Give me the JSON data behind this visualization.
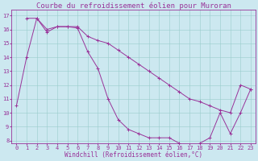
{
  "title": "Courbe du refroidissement éolien pour Muroran",
  "xlabel": "Windchill (Refroidissement éolien,°C)",
  "bg_color": "#cce8f0",
  "grid_color": "#99cccc",
  "line_color": "#993399",
  "line1_x": [
    0,
    1,
    2,
    3,
    4,
    5,
    6,
    7,
    8,
    9,
    10,
    11,
    12,
    13,
    14,
    15,
    16,
    17,
    18,
    19,
    20,
    21,
    22,
    23
  ],
  "line1_y": [
    10.5,
    14.0,
    16.8,
    16.0,
    16.2,
    16.2,
    16.1,
    14.4,
    13.2,
    11.0,
    9.5,
    8.8,
    8.5,
    8.2,
    8.2,
    8.2,
    7.8,
    7.5,
    7.8,
    8.2,
    10.0,
    8.5,
    10.0,
    11.7
  ],
  "line2_x": [
    1,
    2,
    3,
    4,
    5,
    6,
    7,
    8,
    9,
    10,
    11,
    12,
    13,
    14,
    15,
    16,
    17,
    18,
    19,
    20,
    21,
    22,
    23
  ],
  "line2_y": [
    16.8,
    16.8,
    15.8,
    16.2,
    16.2,
    16.2,
    15.5,
    15.2,
    15.0,
    14.5,
    14.0,
    13.5,
    13.0,
    12.5,
    12.0,
    11.5,
    11.0,
    10.8,
    10.5,
    10.2,
    10.0,
    12.0,
    11.7
  ],
  "xlim": [
    -0.5,
    23.5
  ],
  "ylim": [
    7.8,
    17.4
  ],
  "xticks": [
    0,
    1,
    2,
    3,
    4,
    5,
    6,
    7,
    8,
    9,
    10,
    11,
    12,
    13,
    14,
    15,
    16,
    17,
    18,
    19,
    20,
    21,
    22,
    23
  ],
  "yticks": [
    8,
    9,
    10,
    11,
    12,
    13,
    14,
    15,
    16,
    17
  ],
  "title_fontsize": 6.5,
  "tick_fontsize": 5,
  "xlabel_fontsize": 5.5
}
